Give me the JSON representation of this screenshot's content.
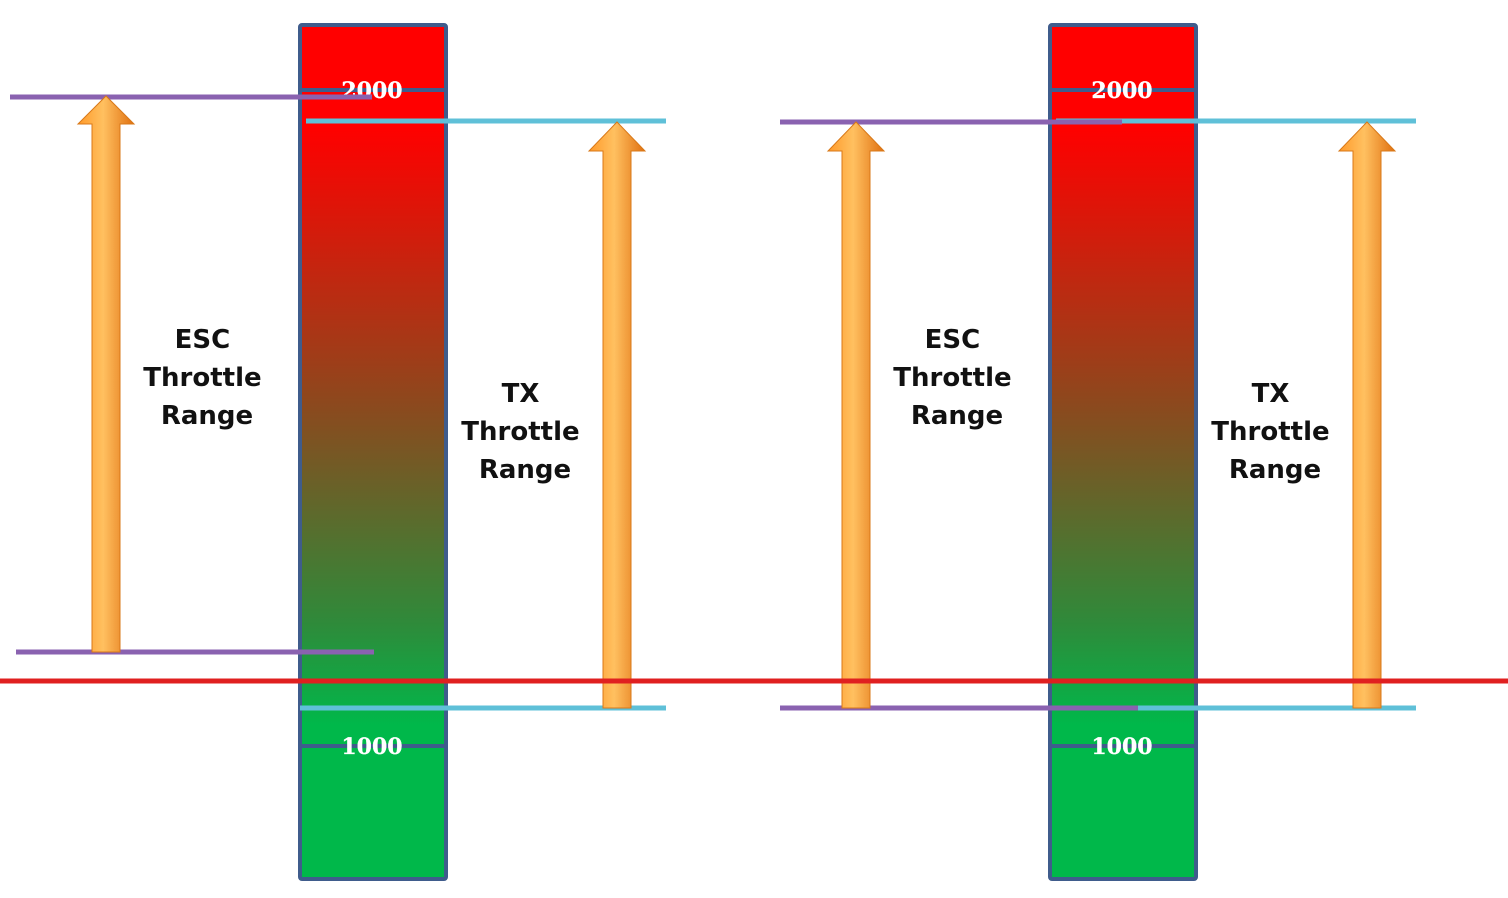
{
  "diagrams": [
    {
      "gauge": {
        "top_label": "2000",
        "bottom_label": "1000"
      },
      "esc_label": [
        "ESC",
        "Throttle",
        "Range"
      ],
      "tx_label": [
        "TX",
        "Throttle",
        "Range"
      ]
    },
    {
      "gauge": {
        "top_label": "2000",
        "bottom_label": "1000"
      },
      "esc_label": [
        "ESC",
        "Throttle",
        "Range"
      ],
      "tx_label": [
        "TX",
        "Throttle",
        "Range"
      ]
    }
  ],
  "colors": {
    "gauge_top": "#ff0000",
    "gauge_mid": "#8a4a1e",
    "gauge_green": "#1fa540",
    "gauge_bottom": "#00b84a",
    "gauge_border": "#3f5c8c",
    "esc_line": "#8a62b0",
    "tx_line": "#5fc0d8",
    "arrow_light": "#ffb347",
    "arrow_dark": "#e07a10",
    "reference_line": "#e02020"
  }
}
